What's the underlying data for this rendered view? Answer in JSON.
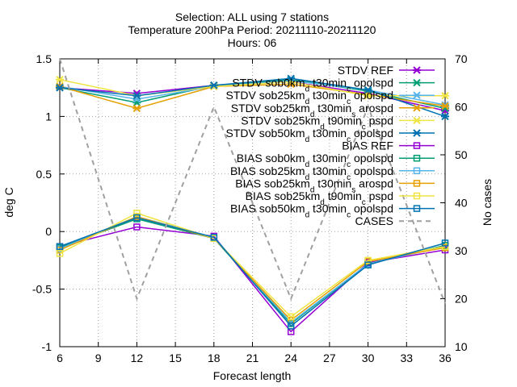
{
  "chart_data": {
    "type": "line",
    "title": "Selection: ALL using 7 stations",
    "subtitle_lines": [
      "Temperature 200hPa   Period: 20211110-20211120",
      "Hours: 06"
    ],
    "xlabel": "Forecast length",
    "ylabel": "deg C",
    "y2label": "No cases",
    "xlim": [
      6,
      36
    ],
    "ylim": [
      -1,
      1.5
    ],
    "y2lim": [
      10,
      70
    ],
    "xticks": [
      6,
      9,
      12,
      15,
      18,
      21,
      24,
      27,
      30,
      33,
      36
    ],
    "yticks": [
      -1,
      -0.5,
      0,
      0.5,
      1,
      1.5
    ],
    "y2ticks": [
      10,
      20,
      30,
      40,
      50,
      60,
      70
    ],
    "grid": true,
    "legend_position": "top-right",
    "x": [
      6,
      12,
      18,
      24,
      30,
      36
    ],
    "series": [
      {
        "name": "STDV REF",
        "kind": "stdv",
        "marker": "x",
        "color": "#9400d3",
        "values": [
          1.25,
          1.2,
          1.27,
          1.3,
          1.2,
          1.05
        ]
      },
      {
        "name": "STDV sob0km_d t30min_c opolspd",
        "kind": "stdv",
        "marker": "x",
        "color": "#009e73",
        "values": [
          1.25,
          1.12,
          1.27,
          1.32,
          1.22,
          1.07
        ]
      },
      {
        "name": "STDV sob25km_d t30min_c opolspd",
        "kind": "stdv",
        "marker": "x",
        "color": "#56b4e9",
        "values": [
          1.26,
          1.15,
          1.26,
          1.31,
          1.23,
          1.1
        ]
      },
      {
        "name": "STDV sob25km_d t30min_s arospd",
        "kind": "stdv",
        "marker": "x",
        "color": "#e69f00",
        "values": [
          1.26,
          1.07,
          1.26,
          1.28,
          1.19,
          1.09
        ]
      },
      {
        "name": "STDV sob25km_d t90min_c pspd",
        "kind": "stdv",
        "marker": "x",
        "color": "#f0e442",
        "values": [
          1.32,
          1.18,
          1.26,
          1.3,
          1.18,
          1.18
        ]
      },
      {
        "name": "STDV sob50km_d t30min_c opolspd",
        "kind": "stdv",
        "marker": "x",
        "color": "#0072b2",
        "values": [
          1.25,
          1.18,
          1.27,
          1.33,
          1.23,
          1.0
        ]
      },
      {
        "name": "BIAS REF",
        "kind": "bias",
        "marker": "square",
        "color": "#9400d3",
        "values": [
          -0.13,
          0.04,
          -0.04,
          -0.87,
          -0.27,
          -0.16
        ]
      },
      {
        "name": "BIAS sob0km_d t30min_c opolspd",
        "kind": "bias",
        "marker": "square",
        "color": "#009e73",
        "values": [
          -0.14,
          0.11,
          -0.06,
          -0.8,
          -0.28,
          -0.12
        ]
      },
      {
        "name": "BIAS sob25km_d t30min_c opolspd",
        "kind": "bias",
        "marker": "square",
        "color": "#56b4e9",
        "values": [
          -0.15,
          0.13,
          -0.05,
          -0.79,
          -0.28,
          -0.13
        ]
      },
      {
        "name": "BIAS sob25km_d t30min_s arospd",
        "kind": "bias",
        "marker": "square",
        "color": "#e69f00",
        "values": [
          -0.16,
          0.13,
          -0.06,
          -0.77,
          -0.26,
          -0.14
        ]
      },
      {
        "name": "BIAS sob25km_d t90min_c pspd",
        "kind": "bias",
        "marker": "square",
        "color": "#f0e442",
        "values": [
          -0.19,
          0.16,
          -0.06,
          -0.74,
          -0.25,
          -0.13
        ]
      },
      {
        "name": "BIAS sob50km_d t30min_c opolspd",
        "kind": "bias",
        "marker": "square",
        "color": "#0072b2",
        "values": [
          -0.13,
          0.12,
          -0.05,
          -0.82,
          -0.29,
          -0.1
        ]
      },
      {
        "name": "CASES",
        "kind": "cases",
        "axis": "y2",
        "marker": "none",
        "color": "#a0a0a0",
        "values": [
          70,
          20,
          60,
          20,
          60,
          19
        ]
      }
    ]
  }
}
